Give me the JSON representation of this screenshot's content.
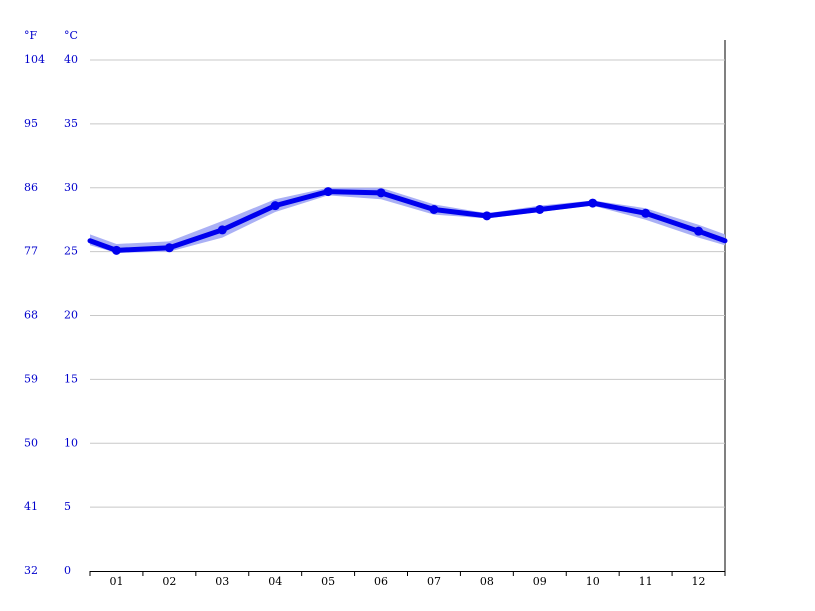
{
  "chart_data": {
    "type": "line",
    "categories": [
      "01",
      "02",
      "03",
      "04",
      "05",
      "06",
      "07",
      "08",
      "09",
      "10",
      "11",
      "12"
    ],
    "series": [
      {
        "color": "#0000ee",
        "values": [
          25.1,
          25.3,
          26.7,
          28.6,
          29.7,
          29.6,
          28.3,
          27.8,
          28.3,
          28.8,
          28.0,
          26.6
        ]
      }
    ],
    "band_low": [
      24.9,
      25.0,
      26.1,
      28.1,
      29.4,
      29.1,
      27.9,
      27.6,
      28.1,
      28.6,
      27.5,
      26.1
    ],
    "band_high": [
      25.6,
      25.8,
      27.4,
      29.1,
      30.0,
      30.0,
      28.7,
      28.0,
      28.6,
      29.0,
      28.4,
      27.1
    ],
    "band_color": "#aab0f5",
    "ylabel": "°C",
    "y2label": "°F",
    "ylim": [
      0,
      40
    ],
    "yticks": [
      0,
      5,
      10,
      15,
      20,
      25,
      30,
      35,
      40
    ],
    "y2lim": [
      32,
      104
    ],
    "y2ticks": [
      32,
      41,
      50,
      59,
      68,
      77,
      86,
      95,
      104
    ],
    "grid": true
  }
}
